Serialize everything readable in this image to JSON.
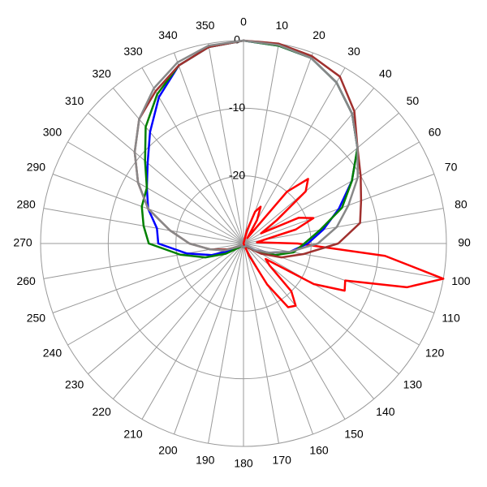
{
  "chart_data": {
    "type": "polar",
    "rlim": [
      -30,
      0
    ],
    "rticks": [
      -20,
      -10,
      0
    ],
    "thetaticks": [
      0,
      10,
      20,
      30,
      40,
      50,
      60,
      70,
      80,
      90,
      100,
      110,
      120,
      130,
      140,
      150,
      160,
      170,
      180,
      190,
      200,
      210,
      220,
      230,
      240,
      250,
      260,
      270,
      280,
      290,
      300,
      310,
      320,
      330,
      340,
      350
    ],
    "theta": [
      0,
      10,
      20,
      30,
      40,
      50,
      60,
      70,
      80,
      90,
      100,
      110,
      120,
      130,
      140,
      150,
      160,
      170,
      180,
      190,
      200,
      210,
      220,
      230,
      240,
      250,
      260,
      270,
      280,
      290,
      300,
      310,
      320,
      330,
      340,
      350
    ],
    "grid": true,
    "series": [
      {
        "color": "#ff0000",
        "theta": [
          0,
          5,
          10,
          15,
          20,
          25,
          30,
          35,
          40,
          45,
          50,
          55,
          60,
          65,
          70,
          75,
          80,
          85,
          90,
          95,
          100,
          105,
          110,
          115,
          120,
          125,
          130,
          135,
          140,
          145,
          150,
          155,
          160,
          165,
          170,
          175,
          180,
          185,
          190,
          195,
          200,
          205,
          210,
          215,
          220,
          225,
          230,
          235,
          240,
          245,
          250,
          255,
          260,
          265,
          270,
          275,
          280,
          285,
          290,
          295,
          300,
          305,
          310,
          315,
          320,
          325,
          330,
          335,
          340,
          345,
          350,
          355
        ],
        "values": [
          -30,
          -30,
          -30,
          -28,
          -25,
          -24,
          -26,
          -29,
          -20,
          -16.5,
          -18,
          -24,
          -27,
          -21,
          -19,
          -22,
          -27,
          -28,
          -22,
          -9,
          0,
          -5,
          -14,
          -13.5,
          -18,
          -26,
          -25,
          -20,
          -18,
          -18.5,
          -23,
          -28,
          -30,
          -30,
          -30,
          -30,
          -30,
          -30,
          -30,
          -30,
          -30,
          -30,
          -30,
          -30,
          -30,
          -30,
          -30,
          -30,
          -30,
          -30,
          -30,
          -30,
          -30,
          -30,
          -30,
          -30,
          -30,
          -30,
          -30,
          -30,
          -30,
          -30,
          -30,
          -30,
          -30,
          -30,
          -30,
          -30,
          -30,
          -30,
          -30,
          -30
        ]
      },
      {
        "color": "#0000ff",
        "values": [
          0,
          -0.3,
          -0.8,
          -2.5,
          -5,
          -8,
          -11.5,
          -15,
          -18,
          -20.5,
          -23,
          -26,
          -28,
          -29.5,
          -29.5,
          -29.5,
          -29.5,
          -29.5,
          -29.5,
          -29.5,
          -29.5,
          -29.5,
          -29.5,
          -29.5,
          -28,
          -25,
          -21.5,
          -17.4,
          -17,
          -15,
          -13.5,
          -11.5,
          -8.5,
          -5,
          -2,
          -0.5
        ]
      },
      {
        "color": "#008000",
        "values": [
          0,
          -0.3,
          -0.8,
          -2.5,
          -5,
          -8,
          -11.5,
          -14.5,
          -18.5,
          -21,
          -22.5,
          -25,
          -27.5,
          -29,
          -29.5,
          -29.5,
          -29.5,
          -29.5,
          -29.5,
          -29.5,
          -29.5,
          -29.5,
          -29.5,
          -29,
          -27,
          -24,
          -20.5,
          -16,
          -15,
          -14,
          -13.5,
          -11,
          -7.5,
          -4.5,
          -2,
          -0.5
        ]
      },
      {
        "color": "#a0302e",
        "values": [
          0,
          0,
          -0.5,
          -1.5,
          -4.5,
          -8,
          -10,
          -11.5,
          -12.5,
          -16,
          -21,
          -24,
          -27,
          -29,
          -29.5,
          -29.5,
          -29.5,
          -29.5,
          -29.5,
          -29.5,
          -29.5,
          -29.5,
          -29.5,
          -29.5,
          -29,
          -27.5,
          -25,
          -22,
          -19,
          -15,
          -12,
          -9,
          -6,
          -4,
          -2,
          -0.5
        ]
      },
      {
        "color": "#888888",
        "values": [
          0,
          -0.2,
          -0.8,
          -2.5,
          -5,
          -8,
          -10.5,
          -13.5,
          -16,
          -19,
          -23,
          -26,
          -28,
          -29.5,
          -29.5,
          -29.5,
          -29.5,
          -29.5,
          -29.5,
          -29.5,
          -29.5,
          -29.5,
          -29.5,
          -29.5,
          -29,
          -27,
          -25,
          -22,
          -19,
          -15,
          -12,
          -9,
          -6,
          -3.5,
          -1.5,
          -0.3
        ]
      }
    ]
  }
}
